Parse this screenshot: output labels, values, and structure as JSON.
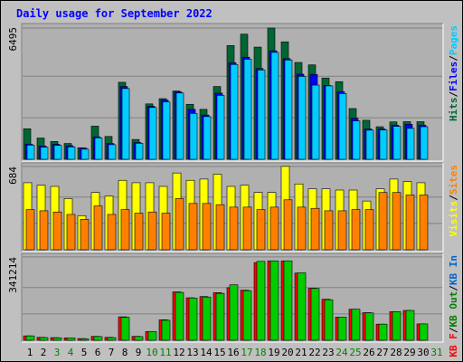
{
  "page": {
    "title": "Daily usage for September 2022"
  },
  "colors": {
    "background": "#c0c0c0",
    "panel": "#b0b0b0",
    "grid": "#808080",
    "title": "#0000ff",
    "hits": "#006633",
    "files": "#0000ff",
    "pages": "#00ccff",
    "visits": "#ffff00",
    "sites": "#ff8000",
    "kbin": "#0066cc",
    "kbout": "#008000",
    "kbf": "#ff0000",
    "kbbar": "#00cc00",
    "weekend": "#008000",
    "weekday": "#000000"
  },
  "chart_data": {
    "type": "bar",
    "x": [
      1,
      2,
      3,
      4,
      5,
      6,
      7,
      8,
      9,
      10,
      11,
      12,
      13,
      14,
      15,
      16,
      17,
      18,
      19,
      20,
      21,
      22,
      23,
      24,
      25,
      26,
      27,
      28,
      29,
      30,
      31
    ],
    "weekend_days": [
      3,
      4,
      10,
      11,
      17,
      18,
      24,
      25,
      31
    ],
    "panels": [
      {
        "name": "hits",
        "max_label": "6495",
        "ymax": 6495,
        "legend": [
          {
            "text": "Hits",
            "color": "#006633"
          },
          {
            "text": "/",
            "color": "#000000"
          },
          {
            "text": "Files",
            "color": "#0000ff"
          },
          {
            "text": "/",
            "color": "#000000"
          },
          {
            "text": "Pages",
            "color": "#00ccff"
          }
        ],
        "series": [
          {
            "name": "Hits",
            "color": "#006633",
            "values": [
              1510,
              1050,
              880,
              780,
              570,
              1640,
              1130,
              3810,
              980,
              2740,
              3000,
              3380,
              2720,
              2470,
              3600,
              5630,
              6190,
              5550,
              6495,
              5810,
              4790,
              4670,
              4020,
              3840,
              2510,
              1930,
              1610,
              1850,
              1860,
              1860,
              0
            ]
          },
          {
            "name": "Files",
            "color": "#0000ff",
            "values": [
              750,
              660,
              740,
              670,
              550,
              1110,
              780,
              3600,
              830,
              2620,
              2930,
              3330,
              2470,
              2190,
              3270,
              4780,
              5050,
              4490,
              5370,
              4980,
              4210,
              4200,
              3650,
              3340,
              2030,
              1500,
              1500,
              1680,
              1730,
              1690,
              0
            ]
          },
          {
            "name": "Pages",
            "color": "#00ccff",
            "values": [
              700,
              600,
              690,
              610,
              500,
              1060,
              720,
              3500,
              790,
              2560,
              2840,
              3280,
              2270,
              2110,
              3160,
              4690,
              4950,
              4420,
              5290,
              4910,
              4100,
              3670,
              3630,
              3250,
              1900,
              1440,
              1450,
              1630,
              1530,
              1610,
              0
            ]
          }
        ]
      },
      {
        "name": "visits",
        "max_label": "684",
        "ymax": 684,
        "legend": [
          {
            "text": "Visits",
            "color": "#ffff00"
          },
          {
            "text": "/",
            "color": "#000000"
          },
          {
            "text": "Sites",
            "color": "#ff8000"
          }
        ],
        "series": [
          {
            "name": "Visits",
            "color": "#ffff00",
            "values": [
              550,
              530,
              520,
              420,
              280,
              470,
              440,
              570,
              550,
              550,
              520,
              630,
              570,
              580,
              620,
              520,
              530,
              470,
              470,
              684,
              540,
              500,
              500,
              490,
              490,
              400,
              500,
              580,
              560,
              550,
              0
            ]
          },
          {
            "name": "Sites",
            "color": "#ff8000",
            "values": [
              330,
              320,
              310,
              290,
              250,
              360,
              290,
              330,
              300,
              310,
              300,
              420,
              380,
              380,
              370,
              350,
              350,
              330,
              350,
              410,
              350,
              340,
              320,
              320,
              330,
              330,
              470,
              470,
              450,
              450,
              0
            ]
          }
        ]
      },
      {
        "name": "kbytes",
        "max_label": "341214",
        "ymax": 341214,
        "legend": [
          {
            "text": "KB F",
            "color": "#ff0000"
          },
          {
            "text": "/",
            "color": "#000000"
          },
          {
            "text": "KB Out",
            "color": "#008000"
          },
          {
            "text": "/",
            "color": "#000000"
          },
          {
            "text": "KB In",
            "color": "#0066cc"
          }
        ],
        "series": [
          {
            "name": "KB F",
            "color": "#ff0000",
            "values": [
              18000,
              12000,
              11000,
              10000,
              7000,
              16000,
              12000,
              96000,
              16000,
              36000,
              84000,
              198000,
              174000,
              179000,
              195000,
              215000,
              205000,
              318000,
              325000,
              325000,
              275000,
              213000,
              168000,
              95000,
              127000,
              113000,
              66000,
              117000,
              122000,
              67000,
              0
            ]
          },
          {
            "name": "KB Out",
            "color": "#00cc00",
            "values": [
              18000,
              11000,
              10000,
              10000,
              6000,
              15000,
              11000,
              94000,
              15000,
              36000,
              82000,
              196000,
              173000,
              177000,
              192000,
              227000,
              203000,
              323000,
              325000,
              325000,
              276000,
              212000,
              166000,
              95000,
              127000,
              112000,
              66000,
              117000,
              122000,
              67000,
              0
            ]
          }
        ]
      }
    ]
  }
}
